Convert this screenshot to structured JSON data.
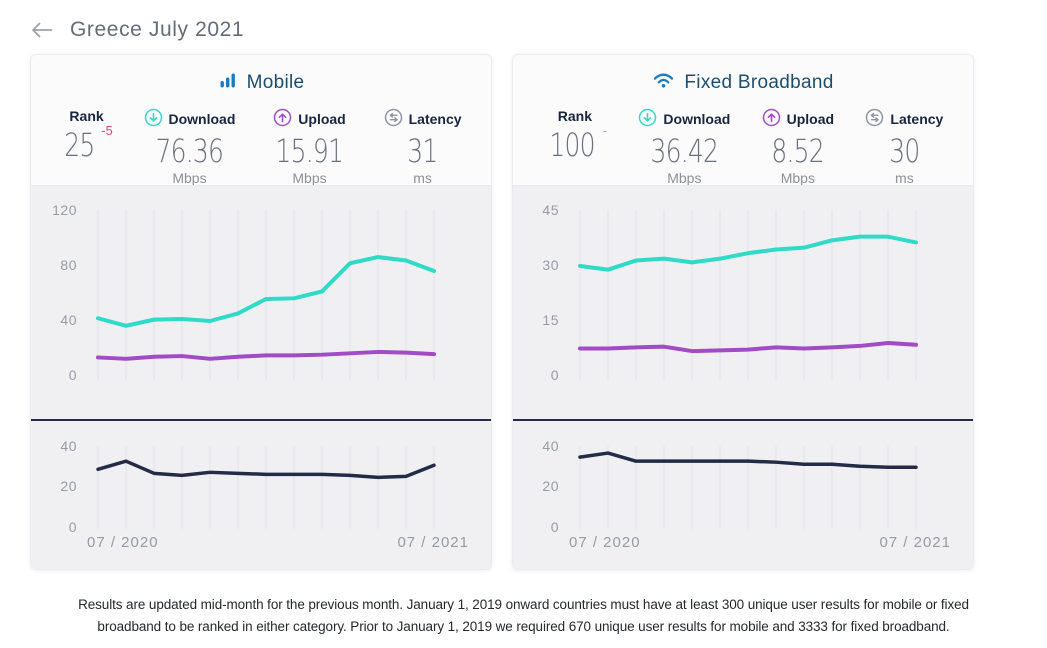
{
  "header": {
    "title": "Greece July 2021"
  },
  "cards": [
    {
      "title": "Mobile",
      "stats": [
        {
          "label": "Rank",
          "value": "25",
          "change": "-5",
          "unit": ""
        },
        {
          "label": "Download",
          "value": "76.36",
          "unit": "Mbps"
        },
        {
          "label": "Upload",
          "value": "15.91",
          "unit": "Mbps"
        },
        {
          "label": "Latency",
          "value": "31",
          "unit": "ms"
        }
      ]
    },
    {
      "title": "Fixed Broadband",
      "stats": [
        {
          "label": "Rank",
          "value": "100",
          "change": "-",
          "unit": ""
        },
        {
          "label": "Download",
          "value": "36.42",
          "unit": "Mbps"
        },
        {
          "label": "Upload",
          "value": "8.52",
          "unit": "Mbps"
        },
        {
          "label": "Latency",
          "value": "30",
          "unit": "ms"
        }
      ]
    }
  ],
  "colors": {
    "download_line": "#2fdac6",
    "upload_line": "#a14bc6",
    "latency_line": "#232b47",
    "accent_blue": "#197cc0",
    "rank_down": "#e8466b",
    "rank_neutral": "#9aa0a6"
  },
  "chart_data": [
    {
      "type": "line",
      "name": "Mobile Download & Upload (Mbps)",
      "categories": [
        "07/2020",
        "08/2020",
        "09/2020",
        "10/2020",
        "11/2020",
        "12/2020",
        "01/2021",
        "02/2021",
        "03/2021",
        "04/2021",
        "05/2021",
        "06/2021",
        "07/2021"
      ],
      "series": [
        {
          "name": "Download",
          "color": "#2fdac6",
          "values": [
            42,
            36.5,
            41,
            41.5,
            40,
            45.5,
            56,
            56.5,
            61.5,
            82,
            86.5,
            84,
            76.36
          ]
        },
        {
          "name": "Upload",
          "color": "#a14bc6",
          "values": [
            13.5,
            12.5,
            14,
            14.5,
            12.5,
            14,
            15,
            15,
            15.5,
            16.5,
            17.5,
            17,
            15.91
          ]
        }
      ],
      "yticks": [
        120,
        80,
        40,
        0
      ],
      "ylim": [
        0,
        120
      ],
      "grid": "vertical",
      "legend": "none"
    },
    {
      "type": "line",
      "name": "Mobile Latency (ms)",
      "categories": [
        "07/2020",
        "08/2020",
        "09/2020",
        "10/2020",
        "11/2020",
        "12/2020",
        "01/2021",
        "02/2021",
        "03/2021",
        "04/2021",
        "05/2021",
        "06/2021",
        "07/2021"
      ],
      "series": [
        {
          "name": "Latency",
          "color": "#232b47",
          "values": [
            29,
            33,
            27,
            26,
            27.5,
            27,
            26.5,
            26.5,
            26.5,
            26,
            25,
            25.5,
            31
          ]
        }
      ],
      "yticks": [
        40,
        20,
        0
      ],
      "ylim": [
        0,
        40
      ],
      "xlabels": [
        "07 / 2020",
        "07 / 2021"
      ],
      "grid": "vertical",
      "legend": "none"
    },
    {
      "type": "line",
      "name": "Fixed Broadband Download & Upload (Mbps)",
      "categories": [
        "07/2020",
        "08/2020",
        "09/2020",
        "10/2020",
        "11/2020",
        "12/2020",
        "01/2021",
        "02/2021",
        "03/2021",
        "04/2021",
        "05/2021",
        "06/2021",
        "07/2021"
      ],
      "series": [
        {
          "name": "Download",
          "color": "#2fdac6",
          "values": [
            30,
            29,
            31.5,
            32,
            31,
            32,
            33.5,
            34.5,
            35,
            37,
            38,
            38,
            36.42
          ]
        },
        {
          "name": "Upload",
          "color": "#a14bc6",
          "values": [
            7.5,
            7.5,
            7.8,
            8,
            6.8,
            7,
            7.2,
            7.8,
            7.5,
            7.8,
            8.2,
            9,
            8.52
          ]
        }
      ],
      "yticks": [
        45,
        30,
        15,
        0
      ],
      "ylim": [
        0,
        45
      ],
      "grid": "vertical",
      "legend": "none"
    },
    {
      "type": "line",
      "name": "Fixed Broadband Latency (ms)",
      "categories": [
        "07/2020",
        "08/2020",
        "09/2020",
        "10/2020",
        "11/2020",
        "12/2020",
        "01/2021",
        "02/2021",
        "03/2021",
        "04/2021",
        "05/2021",
        "06/2021",
        "07/2021"
      ],
      "series": [
        {
          "name": "Latency",
          "color": "#232b47",
          "values": [
            35,
            37,
            33,
            33,
            33,
            33,
            33,
            32.5,
            31.5,
            31.5,
            30.5,
            30,
            30
          ]
        }
      ],
      "yticks": [
        40,
        20,
        0
      ],
      "ylim": [
        0,
        40
      ],
      "xlabels": [
        "07 / 2020",
        "07 / 2021"
      ],
      "grid": "vertical",
      "legend": "none"
    }
  ],
  "footer": {
    "text": "Results are updated mid-month for the previous month. January 1, 2019 onward countries must have at least 300 unique user results for mobile or fixed broadband to be ranked in either category. Prior to January 1, 2019 we required 670 unique user results for mobile and 3333 for fixed broadband."
  }
}
